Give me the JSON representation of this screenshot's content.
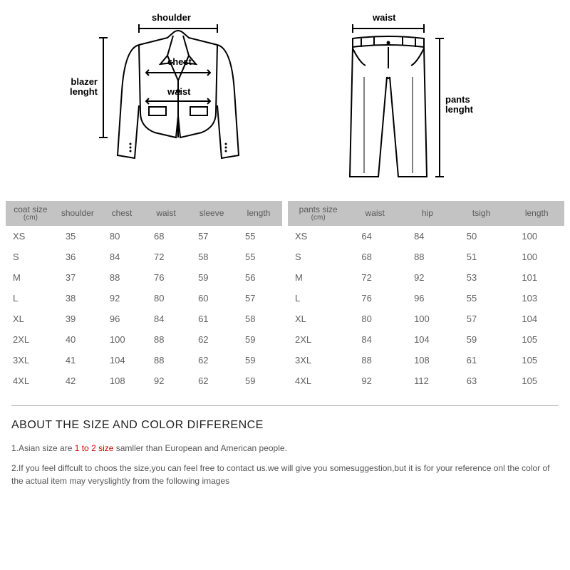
{
  "diagrams": {
    "blazer": {
      "shoulder_label": "shoulder",
      "chest_label": "chest",
      "waist_label": "waist",
      "length_label_line1": "blazer",
      "length_label_line2": "lenght"
    },
    "pants": {
      "waist_label": "waist",
      "length_label_line1": "pants",
      "length_label_line2": "lenght"
    }
  },
  "coat_table": {
    "headers": {
      "size": "coat size",
      "unit": "(cm)",
      "shoulder": "shoulder",
      "chest": "chest",
      "waist": "waist",
      "sleeve": "sleeve",
      "length": "length"
    },
    "rows": [
      {
        "size": "XS",
        "shoulder": "35",
        "chest": "80",
        "waist": "68",
        "sleeve": "57",
        "length": "55"
      },
      {
        "size": "S",
        "shoulder": "36",
        "chest": "84",
        "waist": "72",
        "sleeve": "58",
        "length": "55"
      },
      {
        "size": "M",
        "shoulder": "37",
        "chest": "88",
        "waist": "76",
        "sleeve": "59",
        "length": "56"
      },
      {
        "size": "L",
        "shoulder": "38",
        "chest": "92",
        "waist": "80",
        "sleeve": "60",
        "length": "57"
      },
      {
        "size": "XL",
        "shoulder": "39",
        "chest": "96",
        "waist": "84",
        "sleeve": "61",
        "length": "58"
      },
      {
        "size": "2XL",
        "shoulder": "40",
        "chest": "100",
        "waist": "88",
        "sleeve": "62",
        "length": "59"
      },
      {
        "size": "3XL",
        "shoulder": "41",
        "chest": "104",
        "waist": "88",
        "sleeve": "62",
        "length": "59"
      },
      {
        "size": "4XL",
        "shoulder": "42",
        "chest": "108",
        "waist": "92",
        "sleeve": "62",
        "length": "59"
      }
    ],
    "col_widths": [
      "18%",
      "16%",
      "16%",
      "16%",
      "17%",
      "17%"
    ]
  },
  "pants_table": {
    "headers": {
      "size": "pants size",
      "unit": "(cm)",
      "waist": "waist",
      "hip": "hip",
      "thigh": "tsigh",
      "length": "length"
    },
    "rows": [
      {
        "size": "XS",
        "waist": "64",
        "hip": "84",
        "thigh": "50",
        "length": "100"
      },
      {
        "size": "S",
        "waist": "68",
        "hip": "88",
        "thigh": "51",
        "length": "100"
      },
      {
        "size": "M",
        "waist": "72",
        "hip": "92",
        "thigh": "53",
        "length": "101"
      },
      {
        "size": "L",
        "waist": "76",
        "hip": "96",
        "thigh": "55",
        "length": "103"
      },
      {
        "size": "XL",
        "waist": "80",
        "hip": "100",
        "thigh": "57",
        "length": "104"
      },
      {
        "size": "2XL",
        "waist": "84",
        "hip": "104",
        "thigh": "59",
        "length": "105"
      },
      {
        "size": "3XL",
        "waist": "88",
        "hip": "108",
        "thigh": "61",
        "length": "105"
      },
      {
        "size": "4XL",
        "waist": "92",
        "hip": "112",
        "thigh": "63",
        "length": "105"
      }
    ],
    "col_widths": [
      "22%",
      "19%",
      "19%",
      "20%",
      "20%"
    ]
  },
  "about": {
    "heading": "ABOUT THE SIZE AND COLOR DIFFERENCE",
    "note1_pre": "1.Asian size are ",
    "note1_hl": "1 to 2 size",
    "note1_post": " samller than European and American people.",
    "note2": "2.If you feel diffcult to choos the size,you can feel free to contact us.we will give you somesuggestion,but it is for your reference onl the color of the actual item may veryslightly from the following images"
  },
  "colors": {
    "header_bg": "#c3c3c3",
    "text": "#5e5e5e",
    "highlight": "#d40000",
    "line": "#000000"
  }
}
